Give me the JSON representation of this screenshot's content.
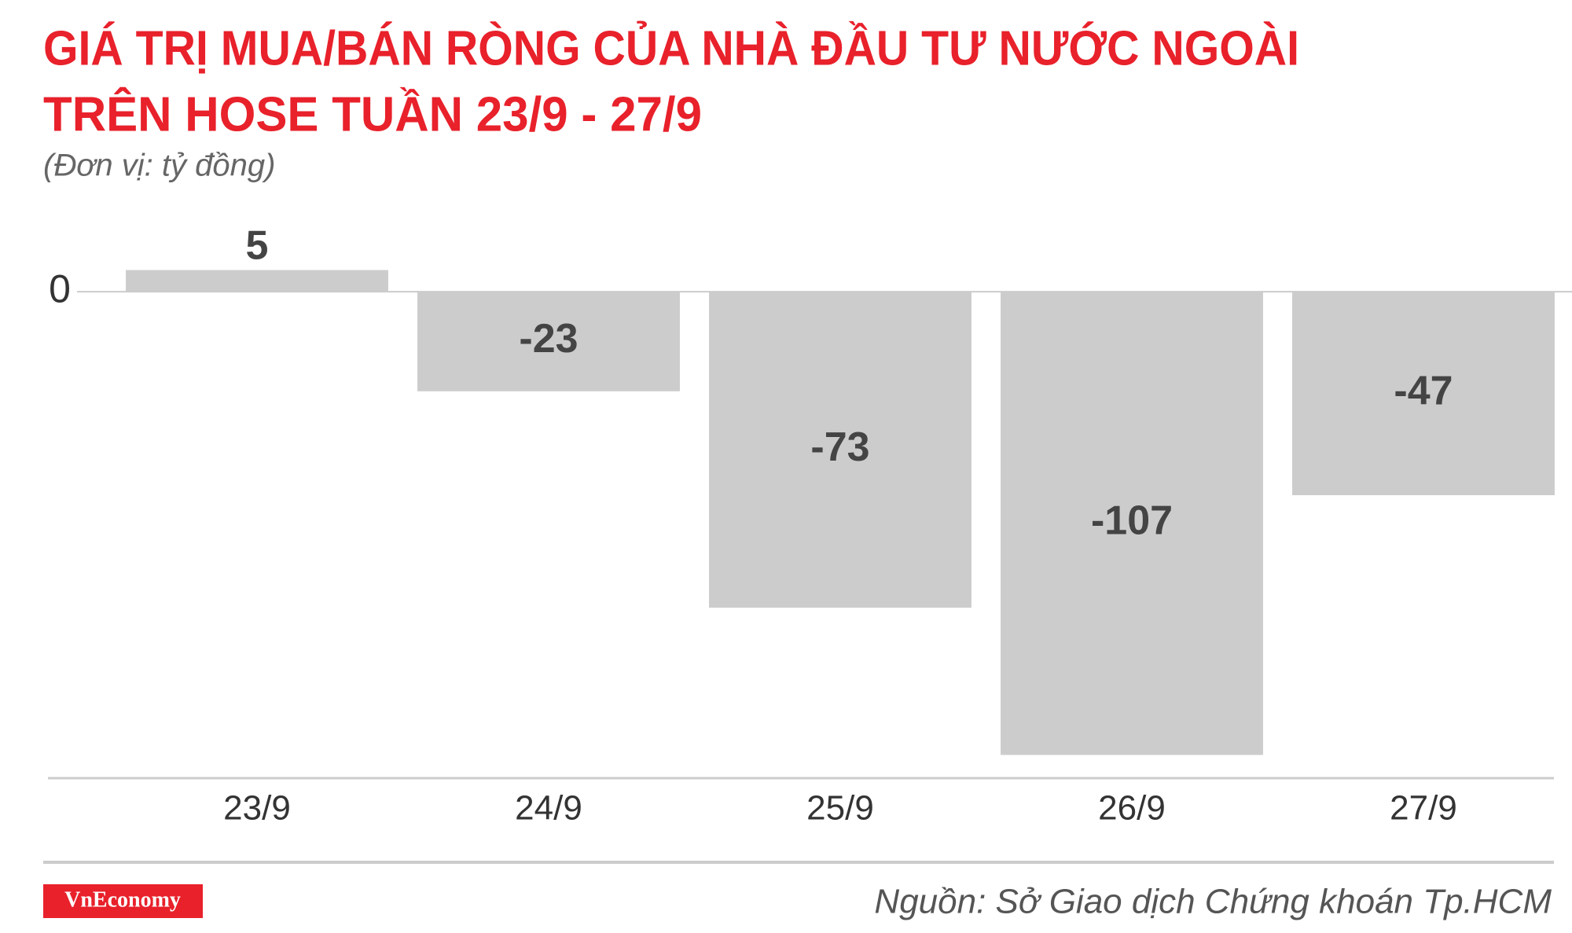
{
  "chart_data": {
    "type": "bar",
    "title": [
      "GIÁ TRỊ MUA/BÁN RÒNG CỦA NHÀ ĐẦU TƯ NƯỚC NGOÀI",
      "TRÊN HOSE TUẦN 23/9 - 27/9"
    ],
    "subtitle": "(Đơn vị: tỷ đồng)",
    "categories": [
      "23/9",
      "24/9",
      "25/9",
      "26/9",
      "27/9"
    ],
    "values": [
      5,
      -23,
      -73,
      -107,
      -47
    ],
    "color": "#cccccc",
    "ylim": [
      -112,
      14
    ],
    "yticks": [
      0
    ],
    "source": "Nguồn: Sở Giao dịch Chứng khoán Tp.HCM",
    "brand": "VnEconomy"
  }
}
